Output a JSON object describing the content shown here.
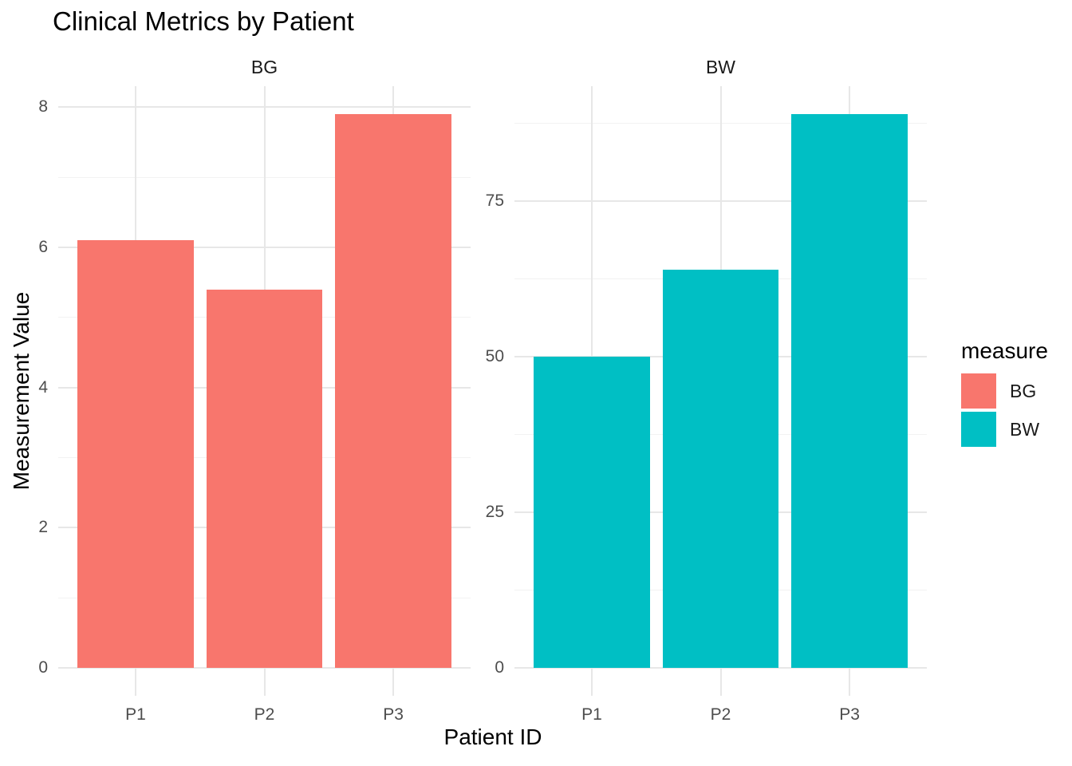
{
  "title": "Clinical Metrics by Patient",
  "legend": {
    "title": "measure",
    "items": [
      {
        "label": "BG",
        "color": "#F8766D"
      },
      {
        "label": "BW",
        "color": "#00BFC4"
      }
    ]
  },
  "colors": {
    "bar_bg": "#F8766D",
    "bar_bw": "#00BFC4",
    "grid_major": "#E7E7E7",
    "grid_minor": "#F2F2F2",
    "axis_text": "#4D4D4D",
    "title_text": "#000000"
  },
  "chart_data": {
    "type": "bar",
    "title": "Clinical Metrics by Patient",
    "xlabel": "Patient ID",
    "ylabel": "Measurement Value",
    "facet_by": "measure",
    "categories": [
      "P1",
      "P2",
      "P3"
    ],
    "facets": [
      {
        "label": "BG",
        "categories": [
          "P1",
          "P2",
          "P3"
        ],
        "values": [
          6.1,
          5.4,
          7.9
        ],
        "color": "#F8766D",
        "y_ticks": [
          0,
          2,
          4,
          6,
          8
        ],
        "y_minor_ticks": [
          1,
          3,
          5,
          7
        ],
        "ylim": [
          -0.4,
          8.3
        ]
      },
      {
        "label": "BW",
        "categories": [
          "P1",
          "P2",
          "P3"
        ],
        "values": [
          50,
          64,
          89
        ],
        "color": "#00BFC4",
        "y_ticks": [
          0,
          25,
          50,
          75
        ],
        "y_minor_ticks": [
          12.5,
          37.5,
          62.5,
          87.5
        ],
        "ylim": [
          -4.45,
          93.45
        ]
      }
    ],
    "grid": true,
    "legend_position": "right"
  }
}
